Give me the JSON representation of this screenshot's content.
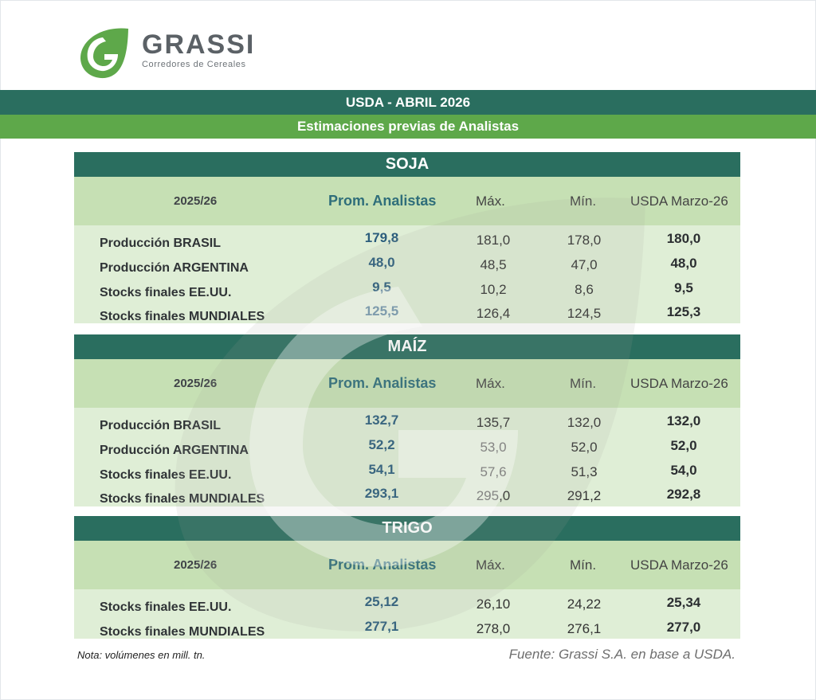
{
  "brand": {
    "name": "GRASSI",
    "tagline": "Corredores de Cereales",
    "color_primary": "#2a6e5f",
    "color_secondary": "#5ea84a",
    "icon": "grassi-leaf-logo-icon"
  },
  "header": {
    "title": "USDA - ABRIL 2026",
    "subtitle": "Estimaciones previas de Analistas"
  },
  "sections": [
    {
      "title": "SOJA",
      "columns": {
        "year": "2025/26",
        "prom": "Prom. Analistas",
        "max": "Máx.",
        "min": "Mín.",
        "usda": "USDA Marzo-26"
      },
      "rows": [
        {
          "label": "Producción BRASIL",
          "prom": "179,8",
          "max": "181,0",
          "min": "178,0",
          "usda": "180,0"
        },
        {
          "label": "Producción ARGENTINA",
          "prom": "48,0",
          "max": "48,5",
          "min": "47,0",
          "usda": "48,0"
        },
        {
          "label": "Stocks finales EE.UU.",
          "prom": "9,5",
          "max": "10,2",
          "min": "8,6",
          "usda": "9,5"
        },
        {
          "label": "Stocks finales MUNDIALES",
          "prom": "125,5",
          "max": "126,4",
          "min": "124,5",
          "usda": "125,3"
        }
      ]
    },
    {
      "title": "MAÍZ",
      "columns": {
        "year": "2025/26",
        "prom": "Prom. Analistas",
        "max": "Máx.",
        "min": "Mín.",
        "usda": "USDA Marzo-26"
      },
      "rows": [
        {
          "label": "Producción BRASIL",
          "prom": "132,7",
          "max": "135,7",
          "min": "132,0",
          "usda": "132,0"
        },
        {
          "label": "Producción ARGENTINA",
          "prom": "52,2",
          "max": "53,0",
          "min": "52,0",
          "usda": "52,0"
        },
        {
          "label": "Stocks finales EE.UU.",
          "prom": "54,1",
          "max": "57,6",
          "min": "51,3",
          "usda": "54,0"
        },
        {
          "label": "Stocks finales MUNDIALES",
          "prom": "293,1",
          "max": "295,0",
          "min": "291,2",
          "usda": "292,8"
        }
      ]
    },
    {
      "title": "TRIGO",
      "columns": {
        "year": "2025/26",
        "prom": "Prom. Analistas",
        "max": "Máx.",
        "min": "Mín.",
        "usda": "USDA Marzo-26"
      },
      "rows": [
        {
          "label": "Stocks finales EE.UU.",
          "prom": "25,12",
          "max": "26,10",
          "min": "24,22",
          "usda": "25,34"
        },
        {
          "label": "Stocks finales MUNDIALES",
          "prom": "277,1",
          "max": "278,0",
          "min": "276,1",
          "usda": "277,0"
        }
      ]
    }
  ],
  "footer": {
    "note": "Nota: volúmenes en mill. tn.",
    "source": "Fuente: Grassi S.A. en base a USDA."
  }
}
